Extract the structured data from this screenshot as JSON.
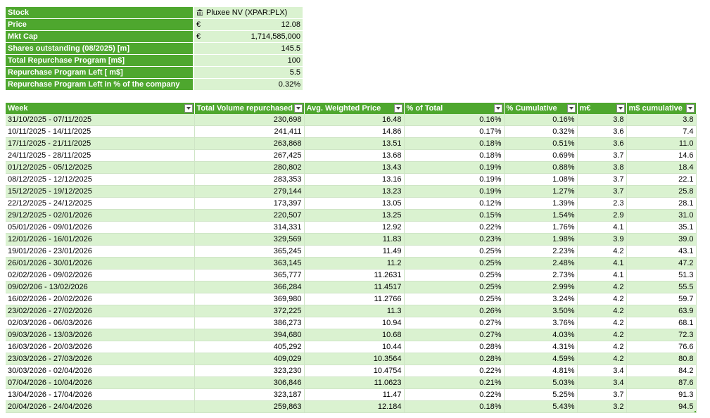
{
  "summary": {
    "rows": [
      {
        "label": "Stock",
        "currency": "",
        "value": "Pluxee NV (XPAR:PLX)",
        "icon": "bank-icon"
      },
      {
        "label": "Price",
        "currency": "€",
        "value": "12.08"
      },
      {
        "label": "Mkt Cap",
        "currency": "€",
        "value": "1,714,585,000"
      },
      {
        "label": "Shares outstanding (08/2025) [m]",
        "currency": "",
        "value": "145.5"
      },
      {
        "label": "Total Repurchase Program  [m$]",
        "currency": "",
        "value": "100"
      },
      {
        "label": "Repurchase Program Left [ m$]",
        "currency": "",
        "value": "5.5"
      },
      {
        "label": "Repurchase Program Left in % of the company",
        "currency": "",
        "value": "0.32%"
      }
    ]
  },
  "table": {
    "headers": [
      "Week",
      "Total Volume repurchased",
      "Avg. Weighted Price",
      "% of Total",
      "% Cumulative",
      "m€",
      "m$ cumulative"
    ],
    "rows": [
      [
        "31/10/2025 - 07/11/2025",
        "230,698",
        "16.48",
        "0.16%",
        "0.16%",
        "3.8",
        "3.8"
      ],
      [
        "10/11/2025 - 14/11/2025",
        "241,411",
        "14.86",
        "0.17%",
        "0.32%",
        "3.6",
        "7.4"
      ],
      [
        "17/11/2025 - 21/11/2025",
        "263,868",
        "13.51",
        "0.18%",
        "0.51%",
        "3.6",
        "11.0"
      ],
      [
        "24/11/2025 - 28/11/2025",
        "267,425",
        "13.68",
        "0.18%",
        "0.69%",
        "3.7",
        "14.6"
      ],
      [
        "01/12/2025 - 05/12/2025",
        "280,802",
        "13.43",
        "0.19%",
        "0.88%",
        "3.8",
        "18.4"
      ],
      [
        "08/12/2025 - 12/12/2025",
        "283,353",
        "13.16",
        "0.19%",
        "1.08%",
        "3.7",
        "22.1"
      ],
      [
        "15/12/2025 - 19/12/2025",
        "279,144",
        "13.23",
        "0.19%",
        "1.27%",
        "3.7",
        "25.8"
      ],
      [
        "22/12/2025 - 24/12/2025",
        "173,397",
        "13.05",
        "0.12%",
        "1.39%",
        "2.3",
        "28.1"
      ],
      [
        "29/12/2025 - 02/01/2026",
        "220,507",
        "13.25",
        "0.15%",
        "1.54%",
        "2.9",
        "31.0"
      ],
      [
        "05/01/2026 - 09/01/2026",
        "314,331",
        "12.92",
        "0.22%",
        "1.76%",
        "4.1",
        "35.1"
      ],
      [
        "12/01/2026 - 16/01/2026",
        "329,569",
        "11.83",
        "0.23%",
        "1.98%",
        "3.9",
        "39.0"
      ],
      [
        "19/01/2026 - 23/01/2026",
        "365,245",
        "11.49",
        "0.25%",
        "2.23%",
        "4.2",
        "43.1"
      ],
      [
        "26/01/2026 - 30/01/2026",
        "363,145",
        "11.2",
        "0.25%",
        "2.48%",
        "4.1",
        "47.2"
      ],
      [
        "02/02/2026 - 09/02/2026",
        "365,777",
        "11.2631",
        "0.25%",
        "2.73%",
        "4.1",
        "51.3"
      ],
      [
        "09/02/206 - 13/02/2026",
        "366,284",
        "11.4517",
        "0.25%",
        "2.99%",
        "4.2",
        "55.5"
      ],
      [
        "16/02/2026 - 20/02/2026",
        "369,980",
        "11.2766",
        "0.25%",
        "3.24%",
        "4.2",
        "59.7"
      ],
      [
        "23/02/2026 - 27/02/2026",
        "372,225",
        "11.3",
        "0.26%",
        "3.50%",
        "4.2",
        "63.9"
      ],
      [
        "02/03/2026 - 06/03/2026",
        "386,273",
        "10.94",
        "0.27%",
        "3.76%",
        "4.2",
        "68.1"
      ],
      [
        "09/03/2026 - 13/03/2026",
        "394,680",
        "10.68",
        "0.27%",
        "4.03%",
        "4.2",
        "72.3"
      ],
      [
        "16/03/2026 - 20/03/2026",
        "405,292",
        "10.44",
        "0.28%",
        "4.31%",
        "4.2",
        "76.6"
      ],
      [
        "23/03/2026 - 27/03/2026",
        "409,029",
        "10.3564",
        "0.28%",
        "4.59%",
        "4.2",
        "80.8"
      ],
      [
        "30/03/2026 - 02/04/2026",
        "323,230",
        "10.4754",
        "0.22%",
        "4.81%",
        "3.4",
        "84.2"
      ],
      [
        "07/04/2026 - 10/04/2026",
        "306,846",
        "11.0623",
        "0.21%",
        "5.03%",
        "3.4",
        "87.6"
      ],
      [
        "13/04/2026 - 17/04/2026",
        "323,187",
        "11.47",
        "0.22%",
        "5.25%",
        "3.7",
        "91.3"
      ],
      [
        "20/04/2026 - 24/04/2026",
        "259,863",
        "12.184",
        "0.18%",
        "5.43%",
        "3.2",
        "94.5"
      ]
    ]
  },
  "colors": {
    "header_green": "#4ea72e",
    "band_green": "#daf2d0"
  }
}
